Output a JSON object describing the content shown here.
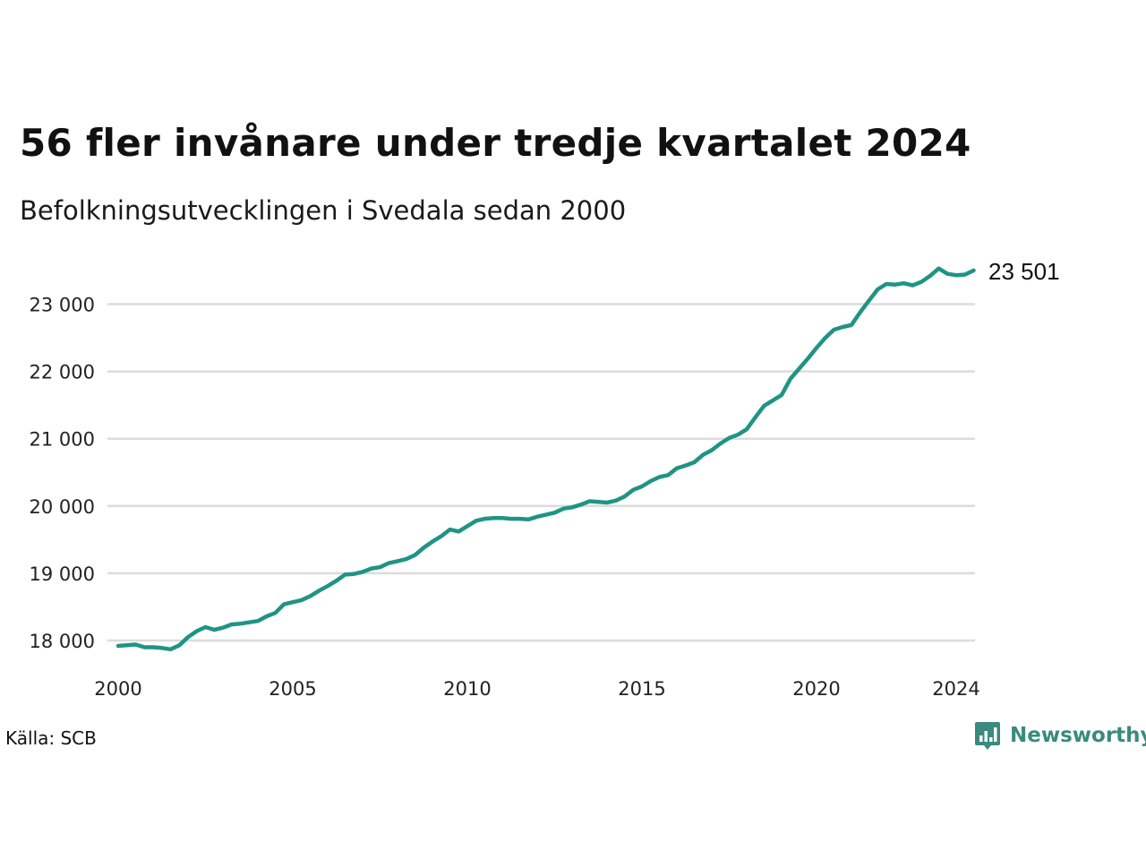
{
  "header": {
    "title": "56 fler invånare under tredje kvartalet 2024",
    "subtitle": "Befolkningsutvecklingen i Svedala sedan 2000"
  },
  "footer": {
    "source": "Källa: SCB",
    "brand": "Newsworthy"
  },
  "colors": {
    "line": "#1f9484",
    "grid": "#dcdcdc",
    "brand": "#3a8a7d"
  },
  "chart_data": {
    "type": "line",
    "title": "56 fler invånare under tredje kvartalet 2024",
    "subtitle": "Befolkningsutvecklingen i Svedala sedan 2000",
    "xlabel": "",
    "ylabel": "",
    "xlim": [
      2000,
      2024.75
    ],
    "ylim": [
      17700,
      23650
    ],
    "x_ticks": [
      2000,
      2005,
      2010,
      2015,
      2020,
      2024
    ],
    "x_tick_labels": [
      "2000",
      "2005",
      "2010",
      "2015",
      "2020",
      "2024"
    ],
    "y_ticks": [
      18000,
      19000,
      20000,
      21000,
      22000,
      23000
    ],
    "y_tick_labels": [
      "18 000",
      "19 000",
      "20 000",
      "21 000",
      "22 000",
      "23 000"
    ],
    "grid": true,
    "end_label": "23 501",
    "series": [
      {
        "x": [
          2000.0,
          2000.25,
          2000.5,
          2000.75,
          2001.0,
          2001.25,
          2001.5,
          2001.75,
          2002.0,
          2002.25,
          2002.5,
          2002.75,
          2003.0,
          2003.25,
          2003.5,
          2003.75,
          2004.0,
          2004.25,
          2004.5,
          2004.75,
          2005.0,
          2005.25,
          2005.5,
          2005.75,
          2006.0,
          2006.25,
          2006.5,
          2006.75,
          2007.0,
          2007.25,
          2007.5,
          2007.75,
          2008.0,
          2008.25,
          2008.5,
          2008.75,
          2009.0,
          2009.25,
          2009.5,
          2009.75,
          2010.0,
          2010.25,
          2010.5,
          2010.75,
          2011.0,
          2011.25,
          2011.5,
          2011.75,
          2012.0,
          2012.25,
          2012.5,
          2012.75,
          2013.0,
          2013.25,
          2013.5,
          2013.75,
          2014.0,
          2014.25,
          2014.5,
          2014.75,
          2015.0,
          2015.25,
          2015.5,
          2015.75,
          2016.0,
          2016.25,
          2016.5,
          2016.75,
          2017.0,
          2017.25,
          2017.5,
          2017.75,
          2018.0,
          2018.25,
          2018.5,
          2018.75,
          2019.0,
          2019.25,
          2019.5,
          2019.75,
          2020.0,
          2020.25,
          2020.5,
          2020.75,
          2021.0,
          2021.25,
          2021.5,
          2021.75,
          2022.0,
          2022.25,
          2022.5,
          2022.75,
          2023.0,
          2023.25,
          2023.5,
          2023.75,
          2024.0,
          2024.25,
          2024.5
        ],
        "values": [
          17920,
          17930,
          17940,
          17900,
          17900,
          17890,
          17870,
          17930,
          18050,
          18140,
          18200,
          18160,
          18190,
          18240,
          18250,
          18270,
          18290,
          18360,
          18410,
          18540,
          18570,
          18600,
          18660,
          18740,
          18810,
          18890,
          18980,
          18990,
          19020,
          19070,
          19090,
          19150,
          19180,
          19210,
          19270,
          19380,
          19470,
          19550,
          19650,
          19620,
          19700,
          19780,
          19810,
          19820,
          19820,
          19810,
          19810,
          19800,
          19840,
          19870,
          19900,
          19960,
          19980,
          20020,
          20070,
          20060,
          20050,
          20080,
          20140,
          20240,
          20290,
          20370,
          20430,
          20460,
          20560,
          20600,
          20650,
          20760,
          20830,
          20930,
          21010,
          21060,
          21140,
          21320,
          21490,
          21570,
          21650,
          21890,
          22040,
          22190,
          22350,
          22500,
          22620,
          22660,
          22690,
          22880,
          23050,
          23220,
          23300,
          23290,
          23310,
          23280,
          23330,
          23420,
          23530,
          23450,
          23430,
          23440,
          23501
        ]
      }
    ]
  }
}
